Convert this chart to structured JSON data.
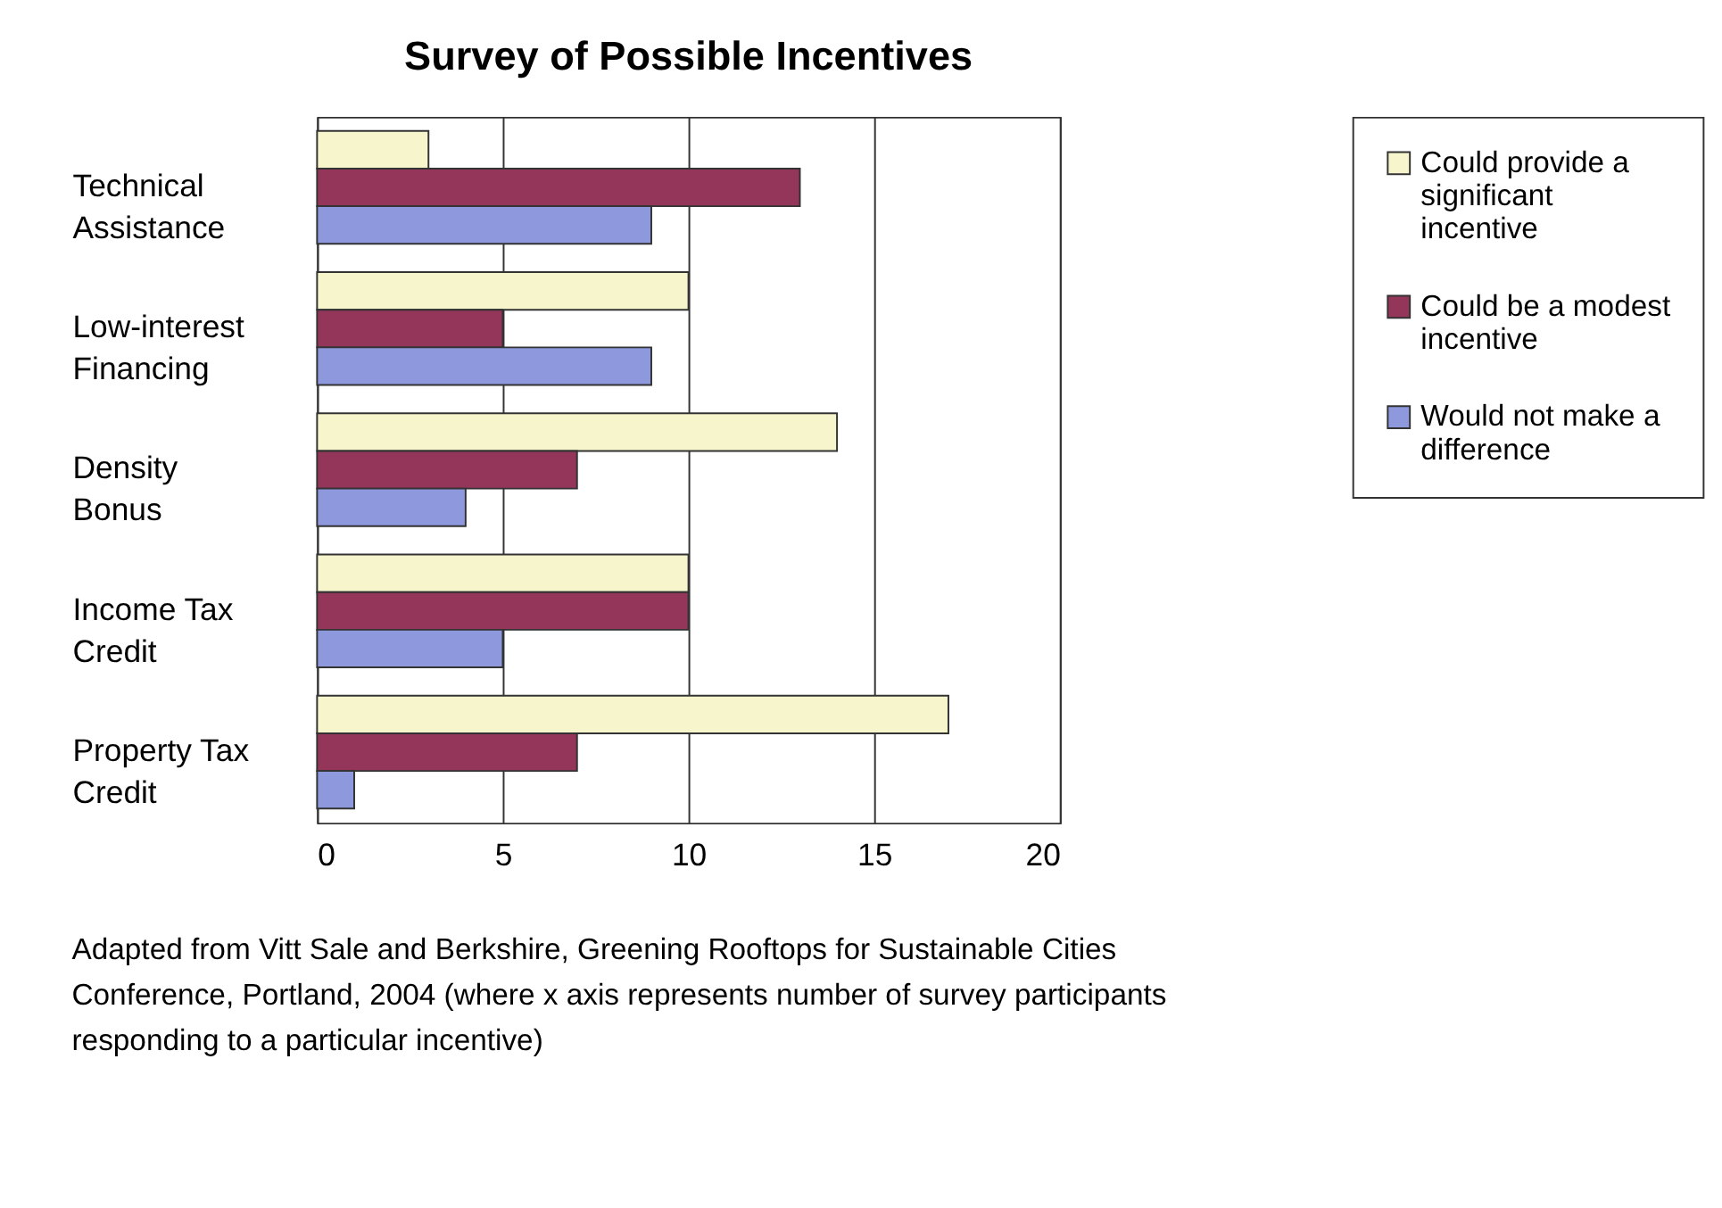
{
  "chart_data": {
    "type": "bar",
    "orientation": "horizontal",
    "title": "Survey of Possible Incentives",
    "categories": [
      "Technical Assistance",
      "Low-interest Financing",
      "Density Bonus",
      "Income Tax Credit",
      "Property Tax Credit"
    ],
    "series": [
      {
        "name": "Could provide a significant incentive",
        "color": "#f7f5cc",
        "values": [
          3,
          10,
          14,
          10,
          17
        ]
      },
      {
        "name": "Could be a modest incentive",
        "color": "#93365a",
        "values": [
          13,
          5,
          7,
          10,
          7
        ]
      },
      {
        "name": "Would not make a difference",
        "color": "#8e99dd",
        "values": [
          9,
          9,
          4,
          5,
          1
        ]
      }
    ],
    "xlim": [
      0,
      20
    ],
    "xticks": [
      0,
      5,
      10,
      15,
      20
    ],
    "grid": "x",
    "legend": "right",
    "annotations": [
      "Adapted from Vitt Sale and Berkshire, Greening Rooftops for Sustainable Cities Conference, Portland, 2004 (where x axis represents number of survey participants responding to a particular incentive)"
    ]
  }
}
